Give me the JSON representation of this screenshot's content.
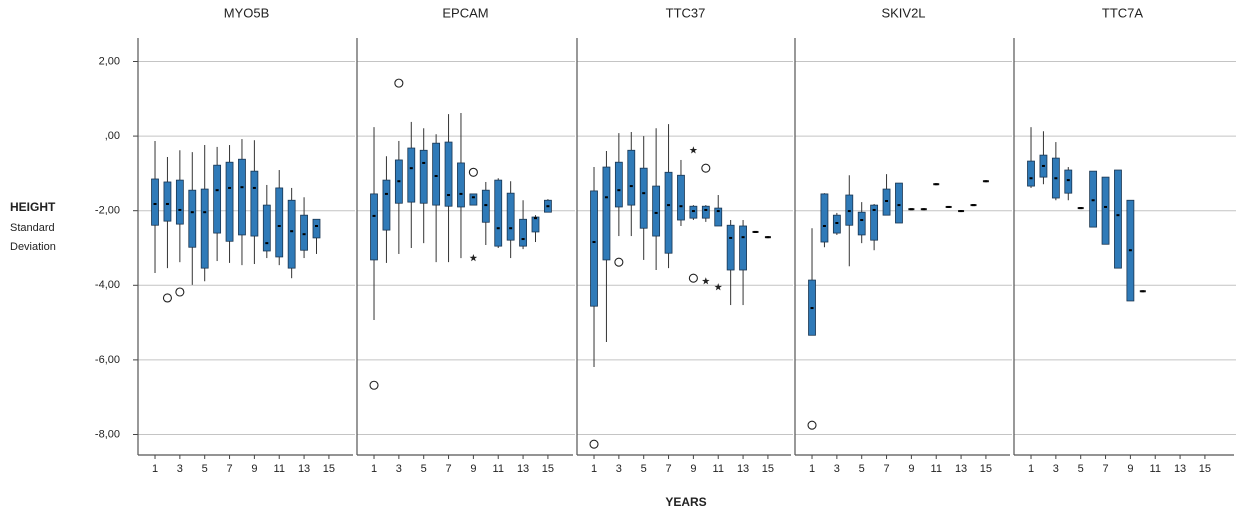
{
  "chart_data": {
    "type": "boxplot",
    "ylabel_lines": [
      "HEIGHT",
      "Standard",
      "Deviation"
    ],
    "xlabel": "YEARS",
    "ylim": [
      -8.55,
      2.63
    ],
    "yticks": [
      {
        "value": 2,
        "label": "2,00"
      },
      {
        "value": 0,
        "label": ",00"
      },
      {
        "value": -2,
        "label": "-2,00"
      },
      {
        "value": -4,
        "label": "-4,00"
      },
      {
        "value": -6,
        "label": "-6,00"
      },
      {
        "value": -8,
        "label": "-8,00"
      }
    ],
    "xlim": [
      -0.37,
      17.1
    ],
    "xticks": [
      1,
      3,
      5,
      7,
      9,
      11,
      13,
      15
    ],
    "grid": true,
    "color": "#2f7ab8",
    "panels": [
      {
        "title": "MYO5B",
        "x": [
          1,
          2,
          3,
          4,
          5,
          6,
          7,
          8,
          9,
          10,
          11,
          12,
          13,
          14
        ],
        "min": [
          -3.67,
          -3.54,
          -3.38,
          -3.99,
          -3.89,
          -3.35,
          -3.4,
          -3.46,
          -3.43,
          -3.27,
          -3.46,
          -3.81,
          -3.27,
          -3.16
        ],
        "q1": [
          -2.39,
          -2.28,
          -2.36,
          -2.98,
          -3.54,
          -2.6,
          -2.82,
          -2.65,
          -2.68,
          -3.08,
          -3.24,
          -3.54,
          -3.06,
          -2.73
        ],
        "median": [
          -1.82,
          -1.82,
          -1.98,
          -2.04,
          -2.04,
          -1.45,
          -1.39,
          -1.37,
          -1.39,
          -2.87,
          -2.41,
          -2.55,
          -2.63,
          -2.41
        ],
        "q3": [
          -1.15,
          -1.23,
          -1.18,
          -1.45,
          -1.42,
          -0.78,
          -0.7,
          -0.62,
          -0.94,
          -1.85,
          -1.39,
          -1.72,
          -2.12,
          -2.23
        ],
        "max": [
          -0.13,
          -0.56,
          -0.38,
          -0.43,
          -0.24,
          -0.29,
          -0.24,
          -0.08,
          -0.11,
          -1.31,
          -0.91,
          -1.39,
          -1.64,
          -2.23
        ],
        "outliers": {
          "x": [
            2,
            3
          ],
          "y": [
            -4.34,
            -4.18
          ],
          "marker": [
            "circle",
            "circle"
          ]
        }
      },
      {
        "title": "EPCAM",
        "x": [
          1,
          2,
          3,
          4,
          5,
          6,
          7,
          8,
          9,
          10,
          11,
          12,
          13,
          14,
          15
        ],
        "min": [
          -4.93,
          -3.4,
          -3.16,
          -3.0,
          -2.87,
          -3.38,
          -3.38,
          -3.27,
          -1.85,
          -2.92,
          -3.0,
          -3.27,
          -3.03,
          -2.84,
          -2.04
        ],
        "q1": [
          -3.32,
          -2.52,
          -1.8,
          -1.77,
          -1.8,
          -1.85,
          -1.88,
          -1.9,
          -1.85,
          -2.31,
          -2.95,
          -2.79,
          -2.95,
          -2.57,
          -2.04
        ],
        "median": [
          -2.14,
          -1.55,
          -1.21,
          -0.86,
          -0.72,
          -1.07,
          -1.58,
          -1.55,
          -1.64,
          -1.85,
          -2.47,
          -2.47,
          -2.76,
          -2.2,
          -1.88
        ],
        "q3": [
          -1.55,
          -1.18,
          -0.64,
          -0.32,
          -0.38,
          -0.19,
          -0.16,
          -0.72,
          -1.55,
          -1.45,
          -1.18,
          -1.53,
          -2.23,
          -2.17,
          -1.72
        ],
        "max": [
          0.24,
          -0.54,
          -0.13,
          0.38,
          0.21,
          0.05,
          0.59,
          0.62,
          -1.55,
          -1.23,
          -1.13,
          -1.21,
          -1.72,
          -2.12,
          -1.69
        ],
        "outliers": {
          "x": [
            1,
            3,
            9,
            9
          ],
          "y": [
            -6.68,
            1.42,
            -0.97,
            -3.27
          ],
          "marker": [
            "circle",
            "circle",
            "circle",
            "star"
          ]
        }
      },
      {
        "title": "TTC37",
        "x": [
          1,
          2,
          3,
          4,
          5,
          6,
          7,
          8,
          9,
          10,
          11,
          12,
          13,
          14,
          15
        ],
        "min": [
          -6.19,
          -5.52,
          -2.68,
          -2.68,
          -3.32,
          -3.59,
          -3.54,
          -2.41,
          -2.25,
          -2.3,
          -2.41,
          -4.53,
          -4.53,
          -2.57,
          -2.71
        ],
        "q1": [
          -4.56,
          -3.32,
          -1.9,
          -1.85,
          -2.47,
          -2.68,
          -3.14,
          -2.25,
          -2.2,
          -2.2,
          -2.41,
          -3.59,
          -3.59,
          -2.57,
          -2.71
        ],
        "median": [
          -2.84,
          -1.64,
          -1.45,
          -1.34,
          -1.53,
          -2.06,
          -1.85,
          -1.88,
          -2.01,
          -1.98,
          -2.01,
          -2.73,
          -2.71,
          -2.57,
          -2.71
        ],
        "q3": [
          -1.47,
          -0.83,
          -0.7,
          -0.38,
          -0.86,
          -1.34,
          -0.97,
          -1.05,
          -1.88,
          -1.88,
          -1.93,
          -2.39,
          -2.41,
          -2.57,
          -2.71
        ],
        "max": [
          -0.83,
          -0.4,
          0.08,
          0.11,
          0,
          0.21,
          0.32,
          -0.64,
          -1.85,
          -1.85,
          -1.58,
          -2.25,
          -2.25,
          -2.57,
          -2.71
        ],
        "outliers": {
          "x": [
            1,
            3,
            9,
            10,
            9,
            10,
            11
          ],
          "y": [
            -8.26,
            -3.38,
            -0.38,
            -0.86,
            -3.81,
            -3.89,
            -4.05
          ],
          "marker": [
            "circle",
            "circle",
            "star",
            "circle",
            "circle",
            "star",
            "star"
          ]
        }
      },
      {
        "title": "SKIV2L",
        "x": [
          1,
          2,
          3,
          4,
          5,
          6,
          7,
          8,
          9,
          10,
          11,
          12,
          13,
          14,
          15
        ],
        "min": [
          -5.34,
          -2.98,
          -2.65,
          -3.49,
          -2.87,
          -3.06,
          -2.12,
          -2.33,
          -1.96,
          -1.96,
          -1.29,
          -1.9,
          -2.01,
          -1.85,
          -1.21
        ],
        "q1": [
          -5.34,
          -2.84,
          -2.6,
          -2.39,
          -2.65,
          -2.79,
          -2.12,
          -2.33,
          -1.96,
          -1.96,
          -1.29,
          -1.9,
          -2.01,
          -1.85,
          -1.21
        ],
        "median": [
          -4.61,
          -2.41,
          -2.33,
          -2.01,
          -2.25,
          -1.98,
          -1.74,
          -1.85,
          -1.96,
          -1.96,
          -1.29,
          -1.9,
          -2.01,
          -1.85,
          -1.21
        ],
        "q3": [
          -3.86,
          -1.55,
          -2.12,
          -1.58,
          -2.04,
          -1.85,
          -1.42,
          -1.26,
          -1.96,
          -1.96,
          -1.29,
          -1.9,
          -2.01,
          -1.85,
          -1.21
        ],
        "max": [
          -2.47,
          -1.53,
          -2.06,
          -1.05,
          -1.77,
          -1.82,
          -1.02,
          -1.26,
          -1.96,
          -1.96,
          -1.29,
          -1.9,
          -2.01,
          -1.85,
          -1.21
        ],
        "outliers": {
          "x": [
            1
          ],
          "y": [
            -7.75
          ],
          "marker": [
            "circle"
          ]
        }
      },
      {
        "title": "TTC7A",
        "x": [
          1,
          2,
          3,
          4,
          5,
          6,
          7,
          8,
          9,
          10
        ],
        "min": [
          -1.39,
          -1.29,
          -1.72,
          -1.72,
          -1.93,
          -2.44,
          -2.9,
          -3.54,
          -4.42,
          -4.16
        ],
        "q1": [
          -1.34,
          -1.1,
          -1.66,
          -1.53,
          -1.93,
          -2.44,
          -2.9,
          -3.54,
          -4.42,
          -4.16
        ],
        "median": [
          -1.13,
          -0.8,
          -1.13,
          -1.18,
          -1.93,
          -1.72,
          -1.9,
          -2.12,
          -3.06,
          -4.16
        ],
        "q3": [
          -0.67,
          -0.51,
          -0.59,
          -0.91,
          -1.93,
          -0.94,
          -1.1,
          -0.91,
          -1.72,
          -4.16
        ],
        "max": [
          0.24,
          0.13,
          -0.16,
          -0.83,
          -1.93,
          -0.94,
          -1.1,
          -0.91,
          -1.72,
          -4.16
        ],
        "outliers": {
          "x": [],
          "y": [],
          "marker": []
        }
      }
    ]
  }
}
